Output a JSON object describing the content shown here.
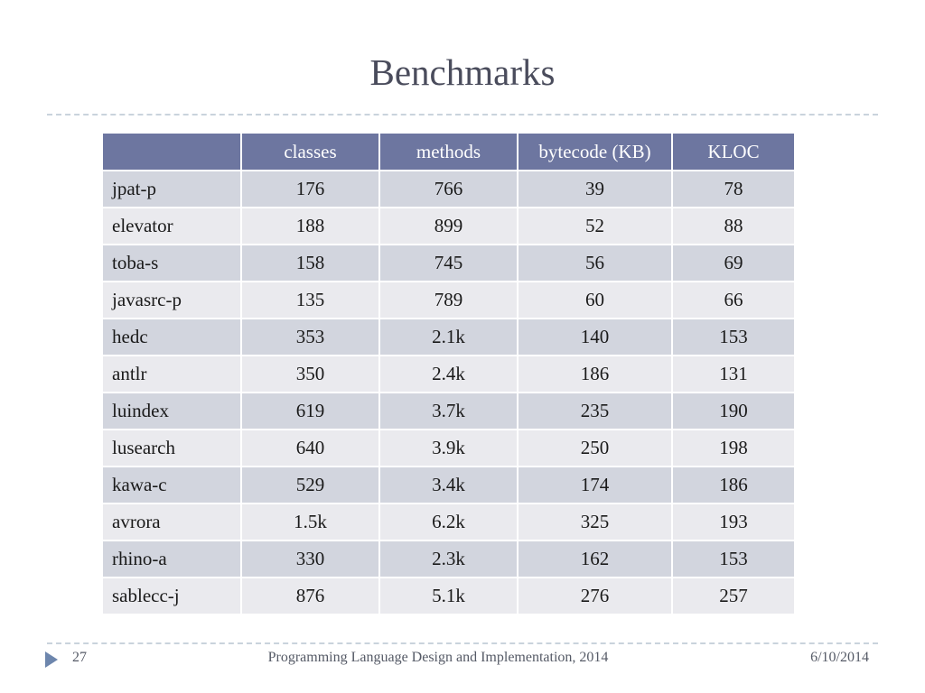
{
  "slide": {
    "title": "Benchmarks",
    "number": "27",
    "footer": "Programming Language Design and Implementation, 2014",
    "date": "6/10/2014"
  },
  "table": {
    "headers": [
      "",
      "classes",
      "methods",
      "bytecode (KB)",
      "KLOC"
    ],
    "rows": [
      [
        "jpat-p",
        "176",
        "766",
        "39",
        "78"
      ],
      [
        "elevator",
        "188",
        "899",
        "52",
        "88"
      ],
      [
        "toba-s",
        "158",
        "745",
        "56",
        "69"
      ],
      [
        "javasrc-p",
        "135",
        "789",
        "60",
        "66"
      ],
      [
        "hedc",
        "353",
        "2.1k",
        "140",
        "153"
      ],
      [
        "antlr",
        "350",
        "2.4k",
        "186",
        "131"
      ],
      [
        "luindex",
        "619",
        "3.7k",
        "235",
        "190"
      ],
      [
        "lusearch",
        "640",
        "3.9k",
        "250",
        "198"
      ],
      [
        "kawa-c",
        "529",
        "3.4k",
        "174",
        "186"
      ],
      [
        "avrora",
        "1.5k",
        "6.2k",
        "325",
        "193"
      ],
      [
        "rhino-a",
        "330",
        "2.3k",
        "162",
        "153"
      ],
      [
        "sablecc-j",
        "876",
        "5.1k",
        "276",
        "257"
      ]
    ]
  },
  "colors": {
    "header_fill": "#6d76a0",
    "row_odd": "#d2d5de",
    "row_even": "#eaeaee",
    "bullet": "#6d86ad"
  },
  "icons": {
    "footer_bullet": "triangle-arrow-right-icon"
  }
}
